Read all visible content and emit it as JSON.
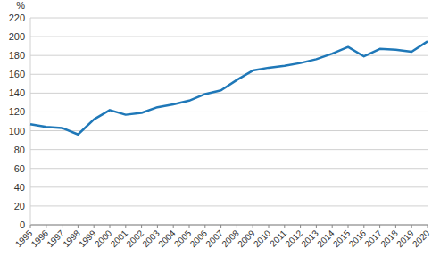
{
  "chart_data": {
    "type": "line",
    "ylabel": "%",
    "categories": [
      "1995",
      "1996",
      "1997",
      "1998",
      "1999",
      "2000",
      "2001",
      "2002",
      "2003",
      "2004",
      "2005",
      "2006",
      "2007",
      "2008",
      "2009",
      "2010",
      "2011",
      "2012",
      "2013",
      "2014",
      "2015",
      "2016",
      "2017",
      "2018",
      "2019",
      "2020"
    ],
    "values": [
      107,
      104,
      103,
      96,
      112,
      122,
      117,
      119,
      125,
      128,
      132,
      139,
      143,
      154,
      164,
      167,
      169,
      172,
      176,
      182,
      189,
      179,
      187,
      186,
      184,
      195
    ],
    "color": "#1f78b8",
    "ylim": [
      0,
      220
    ],
    "yticks": [
      0,
      20,
      40,
      60,
      80,
      100,
      120,
      140,
      160,
      180,
      200,
      220
    ],
    "grid": true
  }
}
